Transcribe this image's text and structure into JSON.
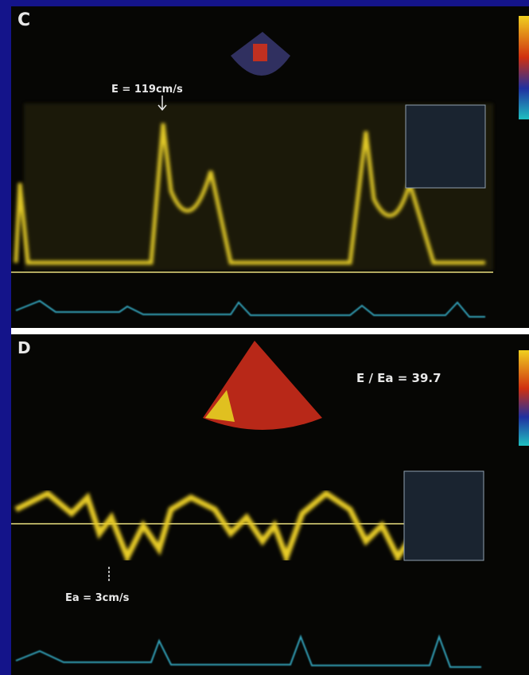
{
  "panels": [
    {
      "label": "C",
      "annotation": "E = 119cm/s"
    },
    {
      "label": "D",
      "ratio": "E / Ea = 39.7",
      "annotation": "Ea = 3cm/s"
    }
  ]
}
